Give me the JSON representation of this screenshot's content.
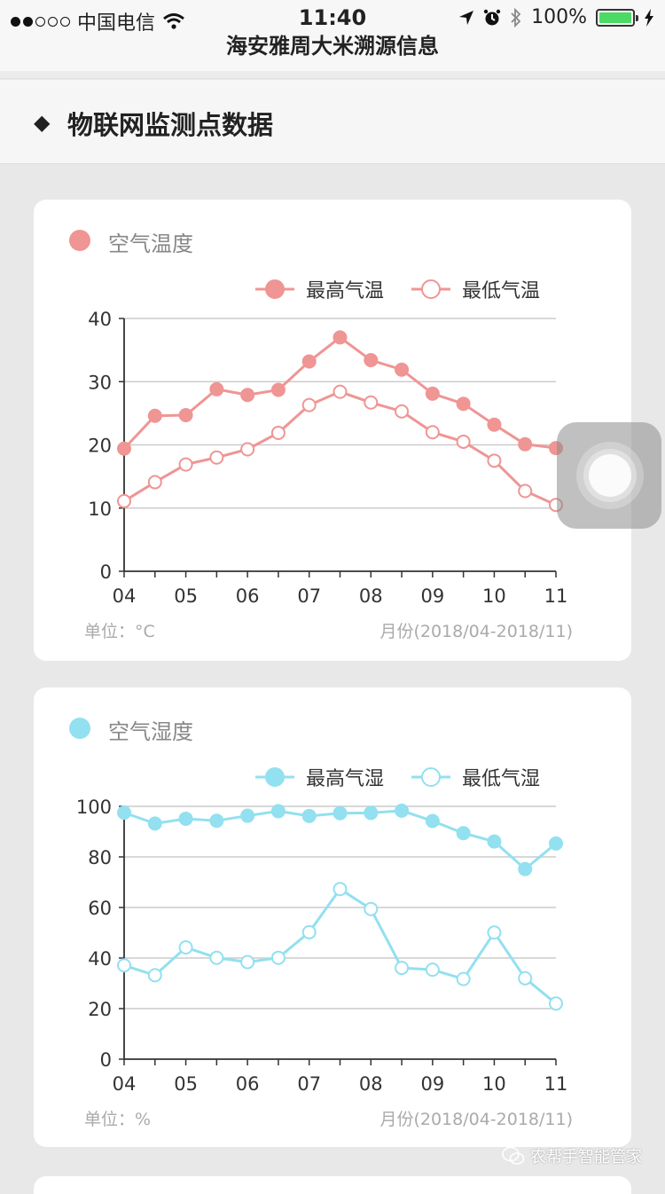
{
  "status_bar": {
    "carrier": "中国电信",
    "time": "11:40",
    "battery": "100%",
    "signal_bars": 2
  },
  "nav": {
    "title": "海安雅周大米溯源信息"
  },
  "section": {
    "title": "物联网监测点数据"
  },
  "watermark": "农帮手智能管家",
  "colors": {
    "temp": "#ef9594",
    "humidity": "#92e0f0",
    "axis": "#333333",
    "grid": "#cccccc"
  },
  "chart_data": [
    {
      "type": "line",
      "title": "空气温度",
      "legend": [
        "最高气温",
        "最低气温"
      ],
      "x_ticks": [
        "04",
        "05",
        "06",
        "07",
        "08",
        "09",
        "10",
        "11"
      ],
      "ylim": [
        0,
        40
      ],
      "y_ticks": [
        0,
        10,
        20,
        30,
        40
      ],
      "unit_label": "单位：°C",
      "period_label": "月份(2018/04-2018/11)",
      "legend_position": "top-right",
      "grid": true,
      "series": [
        {
          "name": "最高气温",
          "filled": true,
          "values": [
            19.4,
            24.6,
            24.7,
            28.8,
            27.9,
            28.7,
            33.2,
            37.0,
            33.4,
            31.9,
            28.1,
            26.5,
            23.2,
            20.1,
            19.5
          ]
        },
        {
          "name": "最低气温",
          "filled": false,
          "values": [
            11.1,
            14.1,
            16.9,
            18.0,
            19.3,
            21.9,
            26.3,
            28.4,
            26.7,
            25.3,
            22.0,
            20.5,
            17.5,
            12.7,
            10.5
          ]
        }
      ]
    },
    {
      "type": "line",
      "title": "空气湿度",
      "legend": [
        "最高气湿",
        "最低气湿"
      ],
      "x_ticks": [
        "04",
        "05",
        "06",
        "07",
        "08",
        "09",
        "10",
        "11"
      ],
      "ylim": [
        0,
        100
      ],
      "y_ticks": [
        0,
        20,
        40,
        60,
        80,
        100
      ],
      "unit_label": "单位：%",
      "period_label": "月份(2018/04-2018/11)",
      "legend_position": "top-right",
      "grid": true,
      "series": [
        {
          "name": "最高气湿",
          "filled": true,
          "values": [
            97.5,
            93.2,
            95.1,
            94.3,
            96.3,
            98.1,
            96.2,
            97.3,
            97.4,
            98.3,
            94.2,
            89.4,
            86.1,
            75.2,
            85.3
          ]
        },
        {
          "name": "最低气湿",
          "filled": false,
          "values": [
            37.1,
            33.2,
            44.2,
            40.1,
            38.4,
            40.1,
            50.2,
            67.3,
            59.4,
            36.1,
            35.4,
            31.7,
            50.1,
            32.0,
            22.0
          ]
        }
      ]
    }
  ]
}
